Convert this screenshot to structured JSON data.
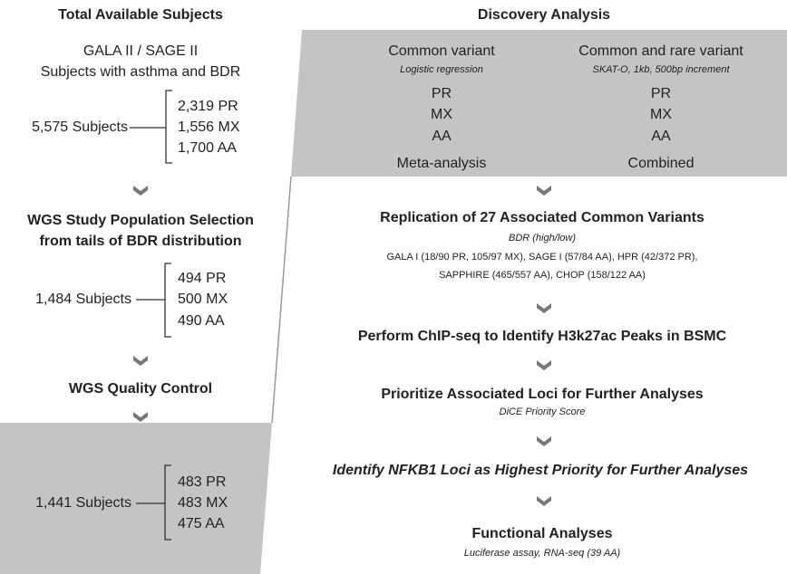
{
  "left": {
    "title": "Total Available Subjects",
    "source": [
      "GALA II / SAGE II",
      "Subjects with asthma and BDR"
    ],
    "groups": [
      {
        "total": "5,575 Subjects",
        "items": [
          "2,319 PR",
          "1,556 MX",
          "1,700 AA"
        ]
      },
      {
        "total": "1,484 Subjects",
        "items": [
          "494 PR",
          "500 MX",
          "490 AA"
        ]
      },
      {
        "total": "1,441 Subjects",
        "items": [
          "483 PR",
          "483 MX",
          "475 AA"
        ]
      }
    ],
    "steps": [
      [
        "WGS Study Population Selection",
        "from tails of BDR distribution"
      ],
      [
        "WGS Quality Control"
      ]
    ]
  },
  "right": {
    "title": "Discovery Analysis",
    "columns": [
      {
        "title": "Common variant",
        "method": "Logistic regression",
        "pops": [
          "PR",
          "MX",
          "AA"
        ],
        "result": "Meta-analysis"
      },
      {
        "title": "Common and rare variant",
        "method": "SKAT-O, 1kb, 500bp increment",
        "pops": [
          "PR",
          "MX",
          "AA"
        ],
        "result": "Combined"
      }
    ],
    "replication": {
      "title": "Replication of 27 Associated Common Variants",
      "subtitle": "BDR (high/low)",
      "details": [
        "GALA I (18/90 PR, 105/97 MX), SAGE I (57/84 AA), HPR (42/372 PR),",
        "SAPPHIRE (465/557 AA), CHOP (158/122 AA)"
      ]
    },
    "chip": "Perform ChIP-seq to Identify H3k27ac Peaks in BSMC",
    "prioritize": {
      "title": "Prioritize Associated Loci for Further Analyses",
      "subtitle": "DiCE Priority Score"
    },
    "identify": "Identify NFKB1 Loci as Highest Priority for Further Analyses",
    "functional": {
      "title": "Functional Analyses",
      "subtitle": "Luciferase assay, RNA-seq (39 AA)"
    }
  }
}
